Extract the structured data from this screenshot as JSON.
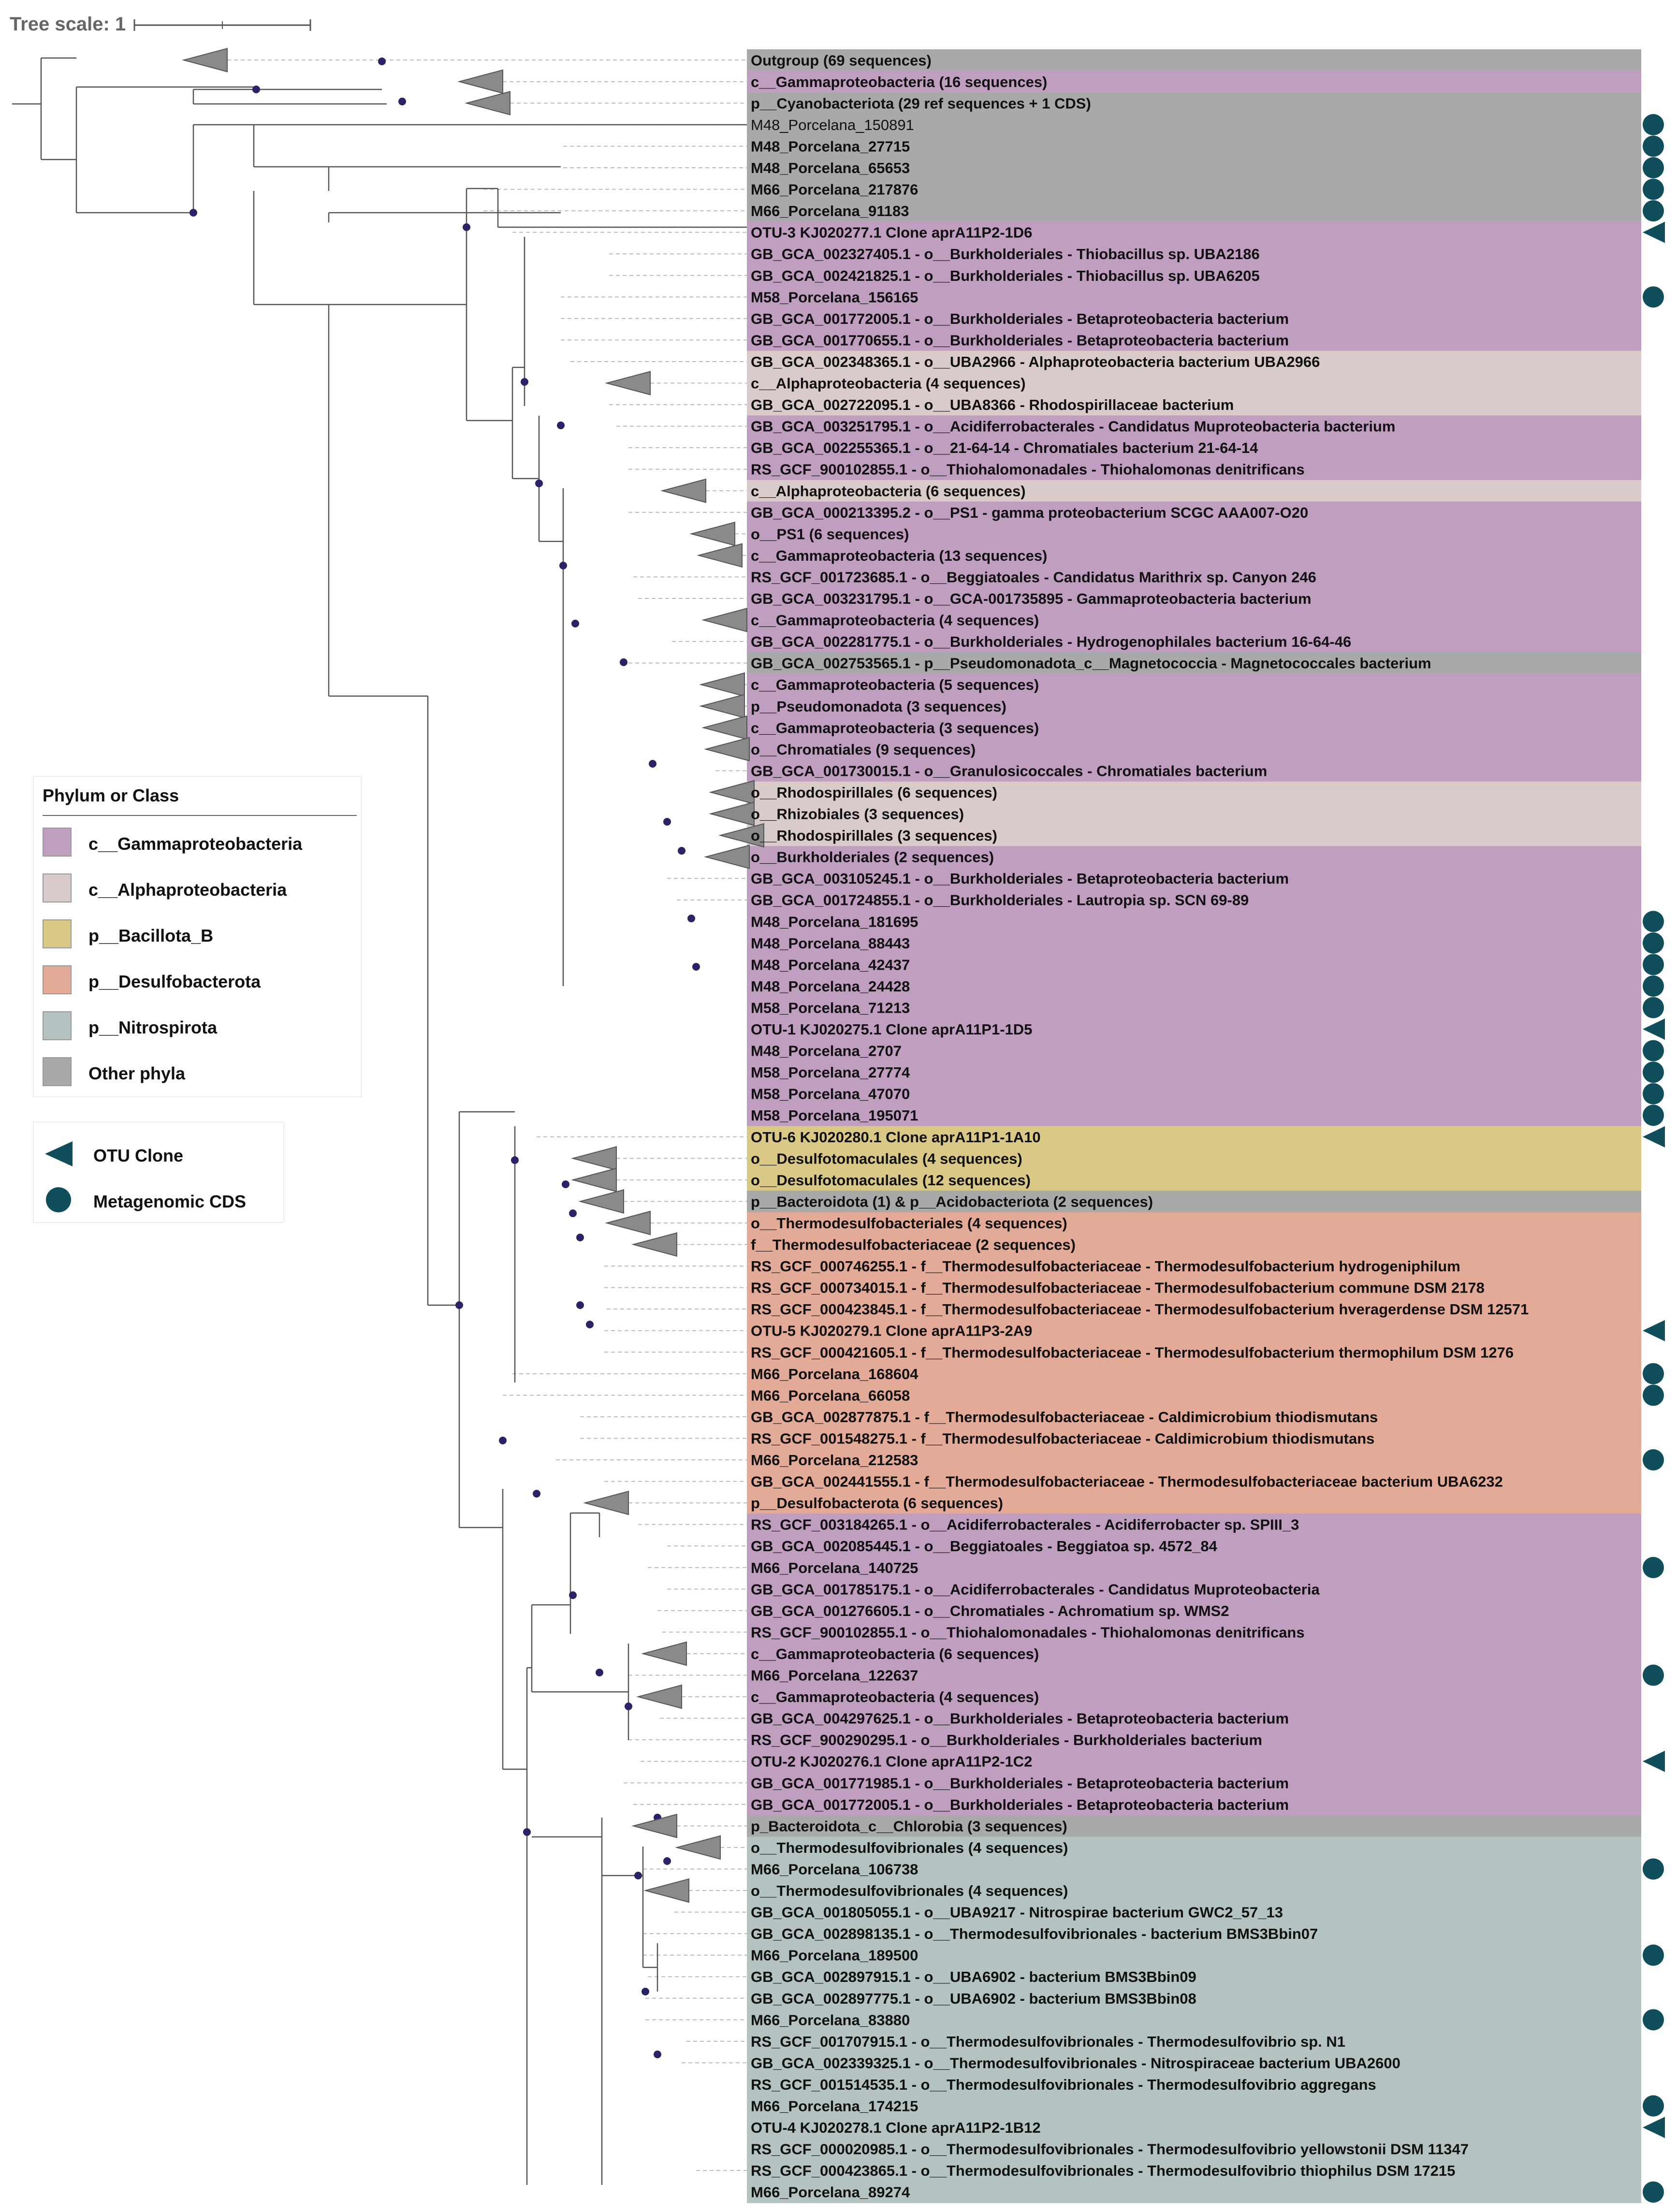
{
  "tree_scale": {
    "label": "Tree scale: 1"
  },
  "colors": {
    "gamma": "#c09ec0",
    "alpha": "#d9cbca",
    "bacillota": "#d9c886",
    "desulfo": "#e3aa98",
    "nitro": "#b4c2c2",
    "other": "#a9a9a9",
    "marker": "#114e5c",
    "node": "#2a2366",
    "collapsed": "#8a8a8a"
  },
  "legend": {
    "title": "Phylum or Class",
    "items": [
      {
        "label": "c__Gammaproteobacteria",
        "color": "#c09ec0"
      },
      {
        "label": "c__Alphaproteobacteria",
        "color": "#d9cbca"
      },
      {
        "label": "p__Bacillota_B",
        "color": "#d9c886"
      },
      {
        "label": "p__Desulfobacterota",
        "color": "#e3aa98"
      },
      {
        "label": "p__Nitrospirota",
        "color": "#b4c2c2"
      },
      {
        "label": "Other phyla",
        "color": "#a9a9a9"
      }
    ]
  },
  "legend2": {
    "items": [
      {
        "label": "OTU Clone",
        "icon": "triangle-left-icon"
      },
      {
        "label": "Metagenomic CDS",
        "icon": "circle-icon"
      }
    ]
  },
  "leaves": [
    {
      "label": "Outgroup (69 sequences)",
      "group": "other",
      "marker": "none",
      "collapsed": true
    },
    {
      "label": "c__Gammaproteobacteria (16 sequences)",
      "group": "gamma",
      "marker": "none",
      "collapsed": true
    },
    {
      "label": "p__Cyanobacteriota (29 ref sequences + 1 CDS)",
      "group": "other",
      "marker": "none",
      "collapsed": true
    },
    {
      "label": "M48_Porcelana_150891",
      "group": "other",
      "marker": "circle",
      "collapsed": false,
      "normal": true
    },
    {
      "label": "M48_Porcelana_27715",
      "group": "other",
      "marker": "circle",
      "collapsed": false
    },
    {
      "label": "M48_Porcelana_65653",
      "group": "other",
      "marker": "circle",
      "collapsed": false
    },
    {
      "label": "M66_Porcelana_217876",
      "group": "other",
      "marker": "circle",
      "collapsed": false
    },
    {
      "label": "M66_Porcelana_91183",
      "group": "other",
      "marker": "circle",
      "collapsed": false
    },
    {
      "label": "OTU-3 KJ020277.1 Clone aprA11P2-1D6",
      "group": "gamma",
      "marker": "triangle",
      "collapsed": false
    },
    {
      "label": "GB_GCA_002327405.1 - o__Burkholderiales - Thiobacillus sp. UBA2186",
      "group": "gamma",
      "marker": "none",
      "collapsed": false
    },
    {
      "label": "GB_GCA_002421825.1 - o__Burkholderiales - Thiobacillus sp. UBA6205",
      "group": "gamma",
      "marker": "none",
      "collapsed": false
    },
    {
      "label": "M58_Porcelana_156165",
      "group": "gamma",
      "marker": "circle",
      "collapsed": false
    },
    {
      "label": "GB_GCA_001772005.1 - o__Burkholderiales - Betaproteobacteria bacterium",
      "group": "gamma",
      "marker": "none",
      "collapsed": false
    },
    {
      "label": "GB_GCA_001770655.1 - o__Burkholderiales - Betaproteobacteria bacterium",
      "group": "gamma",
      "marker": "none",
      "collapsed": false
    },
    {
      "label": "GB_GCA_002348365.1 - o__UBA2966 - Alphaproteobacteria bacterium UBA2966",
      "group": "alpha",
      "marker": "none",
      "collapsed": false
    },
    {
      "label": "c__Alphaproteobacteria (4 sequences)",
      "group": "alpha",
      "marker": "none",
      "collapsed": true
    },
    {
      "label": "GB_GCA_002722095.1 - o__UBA8366 - Rhodospirillaceae bacterium",
      "group": "alpha",
      "marker": "none",
      "collapsed": false
    },
    {
      "label": "GB_GCA_003251795.1 - o__Acidiferrobacterales - Candidatus Muproteobacteria bacterium",
      "group": "gamma",
      "marker": "none",
      "collapsed": false
    },
    {
      "label": "GB_GCA_002255365.1 - o__21-64-14 - Chromatiales bacterium 21-64-14",
      "group": "gamma",
      "marker": "none",
      "collapsed": false
    },
    {
      "label": "RS_GCF_900102855.1 - o__Thiohalomonadales - Thiohalomonas denitrificans",
      "group": "gamma",
      "marker": "none",
      "collapsed": false
    },
    {
      "label": "c__Alphaproteobacteria (6 sequences)",
      "group": "alpha",
      "marker": "none",
      "collapsed": true
    },
    {
      "label": "GB_GCA_000213395.2 - o__PS1 - gamma proteobacterium SCGC AAA007-O20",
      "group": "gamma",
      "marker": "none",
      "collapsed": false
    },
    {
      "label": "o__PS1 (6 sequences)",
      "group": "gamma",
      "marker": "none",
      "collapsed": true
    },
    {
      "label": "c__Gammaproteobacteria (13 sequences)",
      "group": "gamma",
      "marker": "none",
      "collapsed": true
    },
    {
      "label": "RS_GCF_001723685.1 - o__Beggiatoales - Candidatus Marithrix sp. Canyon 246",
      "group": "gamma",
      "marker": "none",
      "collapsed": false
    },
    {
      "label": "GB_GCA_003231795.1 - o__GCA-001735895 - Gammaproteobacteria bacterium",
      "group": "gamma",
      "marker": "none",
      "collapsed": false
    },
    {
      "label": "c__Gammaproteobacteria (4 sequences)",
      "group": "gamma",
      "marker": "none",
      "collapsed": true
    },
    {
      "label": "GB_GCA_002281775.1 - o__Burkholderiales - Hydrogenophilales bacterium 16-64-46",
      "group": "gamma",
      "marker": "none",
      "collapsed": false
    },
    {
      "label": "GB_GCA_002753565.1 - p__Pseudomonadota_c__Magnetococcia - Magnetococcales bacterium",
      "group": "other",
      "marker": "none",
      "collapsed": false
    },
    {
      "label": "c__Gammaproteobacteria (5 sequences)",
      "group": "gamma",
      "marker": "none",
      "collapsed": true
    },
    {
      "label": "p__Pseudomonadota (3 sequences)",
      "group": "gamma",
      "marker": "none",
      "collapsed": true
    },
    {
      "label": "c__Gammaproteobacteria (3 sequences)",
      "group": "gamma",
      "marker": "none",
      "collapsed": true
    },
    {
      "label": "o__Chromatiales (9 sequences)",
      "group": "gamma",
      "marker": "none",
      "collapsed": true
    },
    {
      "label": "GB_GCA_001730015.1 - o__Granulosicoccales - Chromatiales bacterium",
      "group": "gamma",
      "marker": "none",
      "collapsed": false
    },
    {
      "label": "o__Rhodospirillales (6 sequences)",
      "group": "alpha",
      "marker": "none",
      "collapsed": true
    },
    {
      "label": "o__Rhizobiales (3 sequences)",
      "group": "alpha",
      "marker": "none",
      "collapsed": true
    },
    {
      "label": "o__Rhodospirillales (3 sequences)",
      "group": "alpha",
      "marker": "none",
      "collapsed": true
    },
    {
      "label": "o__Burkholderiales (2 sequences)",
      "group": "gamma",
      "marker": "none",
      "collapsed": true
    },
    {
      "label": "GB_GCA_003105245.1 - o__Burkholderiales - Betaproteobacteria bacterium",
      "group": "gamma",
      "marker": "none",
      "collapsed": false
    },
    {
      "label": "GB_GCA_001724855.1 - o__Burkholderiales - Lautropia sp. SCN 69-89",
      "group": "gamma",
      "marker": "none",
      "collapsed": false
    },
    {
      "label": "M48_Porcelana_181695",
      "group": "gamma",
      "marker": "circle",
      "collapsed": false
    },
    {
      "label": "M48_Porcelana_88443",
      "group": "gamma",
      "marker": "circle",
      "collapsed": false
    },
    {
      "label": "M48_Porcelana_42437",
      "group": "gamma",
      "marker": "circle",
      "collapsed": false
    },
    {
      "label": "M48_Porcelana_24428",
      "group": "gamma",
      "marker": "circle",
      "collapsed": false
    },
    {
      "label": "M58_Porcelana_71213",
      "group": "gamma",
      "marker": "circle",
      "collapsed": false
    },
    {
      "label": "OTU-1 KJ020275.1 Clone aprA11P1-1D5",
      "group": "gamma",
      "marker": "triangle",
      "collapsed": false
    },
    {
      "label": "M48_Porcelana_2707",
      "group": "gamma",
      "marker": "circle",
      "collapsed": false
    },
    {
      "label": "M58_Porcelana_27774",
      "group": "gamma",
      "marker": "circle",
      "collapsed": false
    },
    {
      "label": "M58_Porcelana_47070",
      "group": "gamma",
      "marker": "circle",
      "collapsed": false
    },
    {
      "label": "M58_Porcelana_195071",
      "group": "gamma",
      "marker": "circle",
      "collapsed": false
    },
    {
      "label": "OTU-6 KJ020280.1 Clone aprA11P1-1A10",
      "group": "bacillota",
      "marker": "triangle",
      "collapsed": false
    },
    {
      "label": "o__Desulfotomaculales (4 sequences)",
      "group": "bacillota",
      "marker": "none",
      "collapsed": true
    },
    {
      "label": "o__Desulfotomaculales (12 sequences)",
      "group": "bacillota",
      "marker": "none",
      "collapsed": true
    },
    {
      "label": "p__Bacteroidota (1) & p__Acidobacteriota (2 sequences)",
      "group": "other",
      "marker": "none",
      "collapsed": true
    },
    {
      "label": "o__Thermodesulfobacteriales (4 sequences)",
      "group": "desulfo",
      "marker": "none",
      "collapsed": true
    },
    {
      "label": "f__Thermodesulfobacteriaceae (2 sequences)",
      "group": "desulfo",
      "marker": "none",
      "collapsed": true
    },
    {
      "label": "RS_GCF_000746255.1 - f__Thermodesulfobacteriaceae - Thermodesulfobacterium hydrogeniphilum",
      "group": "desulfo",
      "marker": "none",
      "collapsed": false
    },
    {
      "label": "RS_GCF_000734015.1 - f__Thermodesulfobacteriaceae - Thermodesulfobacterium commune DSM 2178",
      "group": "desulfo",
      "marker": "none",
      "collapsed": false
    },
    {
      "label": "RS_GCF_000423845.1 - f__Thermodesulfobacteriaceae - Thermodesulfobacterium hveragerdense DSM 12571",
      "group": "desulfo",
      "marker": "none",
      "collapsed": false
    },
    {
      "label": "OTU-5 KJ020279.1 Clone aprA11P3-2A9",
      "group": "desulfo",
      "marker": "triangle",
      "collapsed": false
    },
    {
      "label": "RS_GCF_000421605.1 - f__Thermodesulfobacteriaceae - Thermodesulfobacterium thermophilum DSM 1276",
      "group": "desulfo",
      "marker": "none",
      "collapsed": false
    },
    {
      "label": "M66_Porcelana_168604",
      "group": "desulfo",
      "marker": "circle",
      "collapsed": false
    },
    {
      "label": "M66_Porcelana_66058",
      "group": "desulfo",
      "marker": "circle",
      "collapsed": false
    },
    {
      "label": "GB_GCA_002877875.1 - f__Thermodesulfobacteriaceae - Caldimicrobium thiodismutans",
      "group": "desulfo",
      "marker": "none",
      "collapsed": false
    },
    {
      "label": "RS_GCF_001548275.1 - f__Thermodesulfobacteriaceae - Caldimicrobium thiodismutans",
      "group": "desulfo",
      "marker": "none",
      "collapsed": false
    },
    {
      "label": "M66_Porcelana_212583",
      "group": "desulfo",
      "marker": "circle",
      "collapsed": false
    },
    {
      "label": "GB_GCA_002441555.1 - f__Thermodesulfobacteriaceae - Thermodesulfobacteriaceae bacterium UBA6232",
      "group": "desulfo",
      "marker": "none",
      "collapsed": false
    },
    {
      "label": "p__Desulfobacterota (6 sequences)",
      "group": "desulfo",
      "marker": "none",
      "collapsed": true
    },
    {
      "label": "RS_GCF_003184265.1 - o__Acidiferrobacterales - Acidiferrobacter sp. SPIII_3",
      "group": "gamma",
      "marker": "none",
      "collapsed": false
    },
    {
      "label": "GB_GCA_002085445.1 - o__Beggiatoales - Beggiatoa sp. 4572_84",
      "group": "gamma",
      "marker": "none",
      "collapsed": false
    },
    {
      "label": "M66_Porcelana_140725",
      "group": "gamma",
      "marker": "circle",
      "collapsed": false
    },
    {
      "label": "GB_GCA_001785175.1 - o__Acidiferrobacterales - Candidatus Muproteobacteria",
      "group": "gamma",
      "marker": "none",
      "collapsed": false
    },
    {
      "label": "GB_GCA_001276605.1 - o__Chromatiales - Achromatium sp. WMS2",
      "group": "gamma",
      "marker": "none",
      "collapsed": false
    },
    {
      "label": "RS_GCF_900102855.1 - o__Thiohalomonadales - Thiohalomonas denitrificans",
      "group": "gamma",
      "marker": "none",
      "collapsed": false
    },
    {
      "label": "c__Gammaproteobacteria (6 sequences)",
      "group": "gamma",
      "marker": "none",
      "collapsed": true
    },
    {
      "label": "M66_Porcelana_122637",
      "group": "gamma",
      "marker": "circle",
      "collapsed": false
    },
    {
      "label": "c__Gammaproteobacteria (4 sequences)",
      "group": "gamma",
      "marker": "none",
      "collapsed": true
    },
    {
      "label": "GB_GCA_004297625.1 - o__Burkholderiales - Betaproteobacteria bacterium",
      "group": "gamma",
      "marker": "none",
      "collapsed": false
    },
    {
      "label": "RS_GCF_900290295.1 - o__Burkholderiales - Burkholderiales bacterium",
      "group": "gamma",
      "marker": "none",
      "collapsed": false
    },
    {
      "label": "OTU-2 KJ020276.1 Clone aprA11P2-1C2",
      "group": "gamma",
      "marker": "triangle",
      "collapsed": false
    },
    {
      "label": "GB_GCA_001771985.1 - o__Burkholderiales - Betaproteobacteria bacterium",
      "group": "gamma",
      "marker": "none",
      "collapsed": false
    },
    {
      "label": "GB_GCA_001772005.1 - o__Burkholderiales - Betaproteobacteria bacterium",
      "group": "gamma",
      "marker": "none",
      "collapsed": false
    },
    {
      "label": "p_Bacteroidota_c__Chlorobia (3 sequences)",
      "group": "other",
      "marker": "none",
      "collapsed": true
    },
    {
      "label": "o__Thermodesulfovibrionales (4 sequences)",
      "group": "nitro",
      "marker": "none",
      "collapsed": true
    },
    {
      "label": "M66_Porcelana_106738",
      "group": "nitro",
      "marker": "circle",
      "collapsed": false
    },
    {
      "label": "o__Thermodesulfovibrionales (4 sequences)",
      "group": "nitro",
      "marker": "none",
      "collapsed": true
    },
    {
      "label": "GB_GCA_001805055.1 - o__UBA9217 - Nitrospirae bacterium GWC2_57_13",
      "group": "nitro",
      "marker": "none",
      "collapsed": false
    },
    {
      "label": "GB_GCA_002898135.1 - o__Thermodesulfovibrionales - bacterium BMS3Bbin07",
      "group": "nitro",
      "marker": "none",
      "collapsed": false
    },
    {
      "label": "M66_Porcelana_189500",
      "group": "nitro",
      "marker": "circle",
      "collapsed": false
    },
    {
      "label": "GB_GCA_002897915.1 - o__UBA6902 - bacterium BMS3Bbin09",
      "group": "nitro",
      "marker": "none",
      "collapsed": false
    },
    {
      "label": "GB_GCA_002897775.1 - o__UBA6902 - bacterium BMS3Bbin08",
      "group": "nitro",
      "marker": "none",
      "collapsed": false
    },
    {
      "label": "M66_Porcelana_83880",
      "group": "nitro",
      "marker": "circle",
      "collapsed": false
    },
    {
      "label": "RS_GCF_001707915.1 - o__Thermodesulfovibrionales - Thermodesulfovibrio sp. N1",
      "group": "nitro",
      "marker": "none",
      "collapsed": false
    },
    {
      "label": "GB_GCA_002339325.1 - o__Thermodesulfovibrionales - Nitrospiraceae bacterium UBA2600",
      "group": "nitro",
      "marker": "none",
      "collapsed": false
    },
    {
      "label": "RS_GCF_001514535.1 - o__Thermodesulfovibrionales - Thermodesulfovibrio aggregans",
      "group": "nitro",
      "marker": "none",
      "collapsed": false
    },
    {
      "label": "M66_Porcelana_174215",
      "group": "nitro",
      "marker": "circle",
      "collapsed": false
    },
    {
      "label": "OTU-4 KJ020278.1 Clone aprA11P2-1B12",
      "group": "nitro",
      "marker": "triangle",
      "collapsed": false
    },
    {
      "label": "RS_GCF_000020985.1 - o__Thermodesulfovibrionales - Thermodesulfovibrio yellowstonii DSM 11347",
      "group": "nitro",
      "marker": "none",
      "collapsed": false
    },
    {
      "label": "RS_GCF_000423865.1 - o__Thermodesulfovibrionales - Thermodesulfovibrio thiophilus DSM 17215",
      "group": "nitro",
      "marker": "none",
      "collapsed": false
    },
    {
      "label": "M66_Porcelana_89274",
      "group": "nitro",
      "marker": "circle",
      "collapsed": false
    }
  ]
}
